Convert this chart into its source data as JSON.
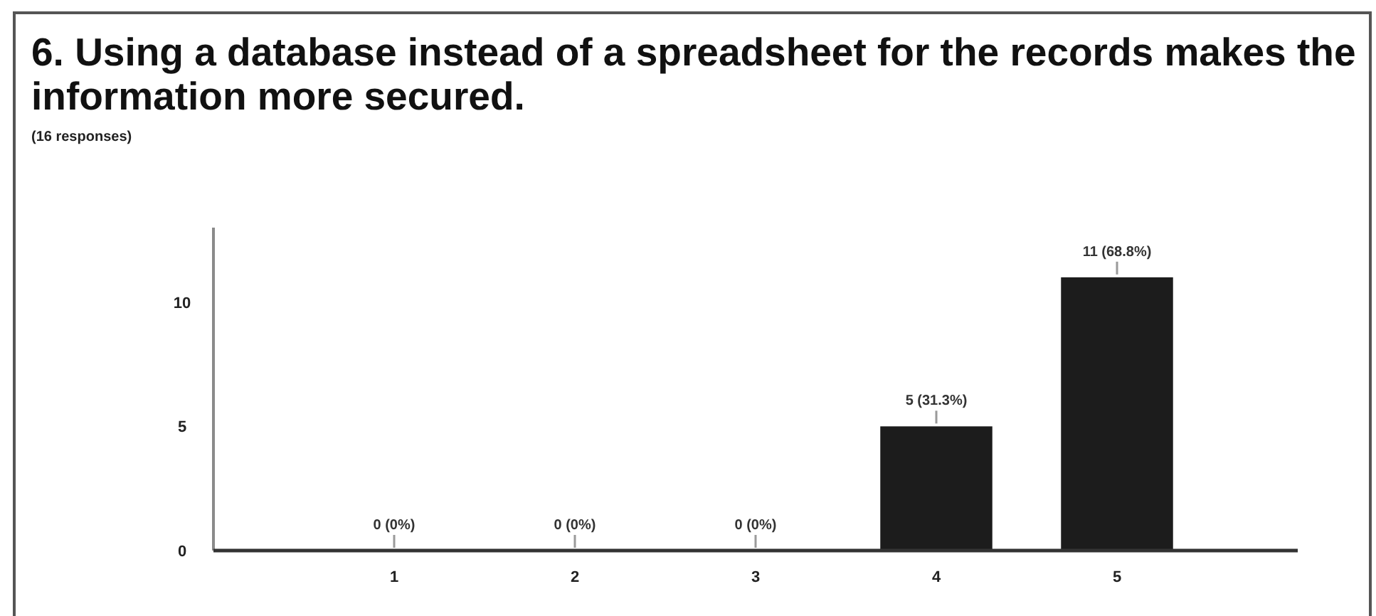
{
  "chart_data": {
    "type": "bar",
    "title": "6. Using a database instead of a spreadsheet for the records makes the information more secured.",
    "subtitle": "(16 responses)",
    "categories": [
      "1",
      "2",
      "3",
      "4",
      "5"
    ],
    "values": [
      0,
      0,
      0,
      5,
      11
    ],
    "color": "#1c1c1c",
    "value_labels": [
      "0 (0%)",
      "0 (0%)",
      "0 (0%)",
      "5 (31.3%)",
      "11 (68.8%)"
    ],
    "ylim": [
      0,
      13
    ],
    "yticks": [
      0,
      5,
      10
    ]
  }
}
